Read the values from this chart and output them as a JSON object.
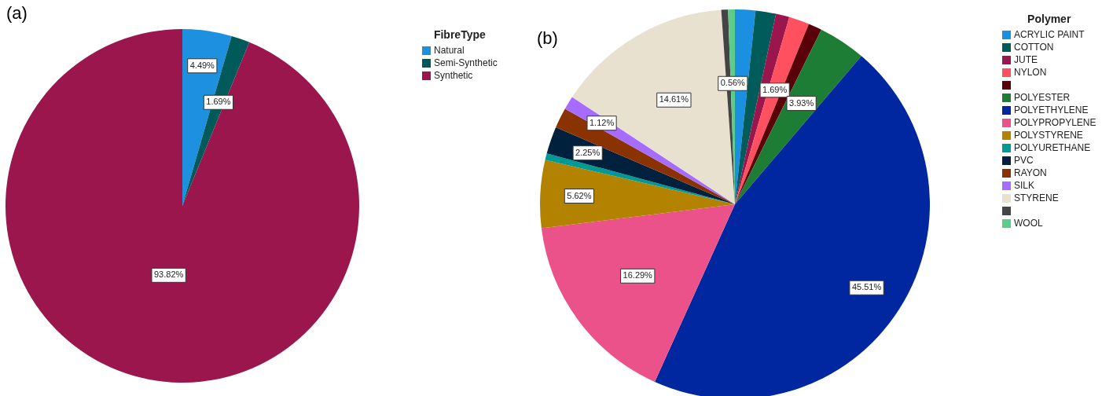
{
  "chart_data": [
    {
      "type": "pie",
      "annotations": [
        "(a)"
      ],
      "legend_title": "FibreType",
      "legend": "top right",
      "categories": [
        "Natural",
        "Semi-Synthetic",
        "Synthetic"
      ],
      "values": [
        4.49,
        1.69,
        93.82
      ],
      "colors": [
        "#1e90e0",
        "#005a5a",
        "#9b164c"
      ],
      "value_labels": [
        "4.49%",
        "1.69%",
        "93.82%"
      ]
    },
    {
      "type": "pie",
      "annotations": [
        "(b)"
      ],
      "legend_title": "Polymer",
      "legend": "top right",
      "categories": [
        "ACRYLIC PAINT",
        "COTTON",
        "JUTE",
        "NYLON",
        null,
        "POLYESTER",
        "POLYETHYLENE",
        "POLYPROPYLENE",
        "POLYSTYRENE",
        "POLYURETHANE",
        "PVC",
        "RAYON",
        "SILK",
        "STYRENE",
        null,
        "WOOL"
      ],
      "values": [
        1.69,
        1.69,
        1.12,
        1.69,
        1.12,
        3.93,
        45.51,
        16.29,
        5.62,
        0.56,
        2.25,
        1.69,
        1.12,
        14.61,
        0.56,
        0.56
      ],
      "colors": [
        "#1b8fe0",
        "#005b5b",
        "#9b164c",
        "#ff5060",
        "#5a0008",
        "#1e7d35",
        "#0027a0",
        "#eb528a",
        "#b38300",
        "#009a96",
        "#00213e",
        "#8a3200",
        "#a66cff",
        "#e8e1cf",
        "#444444",
        "#5ccc8a"
      ],
      "value_labels": [
        null,
        null,
        null,
        "1.69%",
        null,
        "3.93%",
        "45.51%",
        "16.29%",
        "5.62%",
        null,
        "2.25%",
        null,
        "1.12%",
        "14.61%",
        null,
        "0.56%"
      ]
    }
  ]
}
